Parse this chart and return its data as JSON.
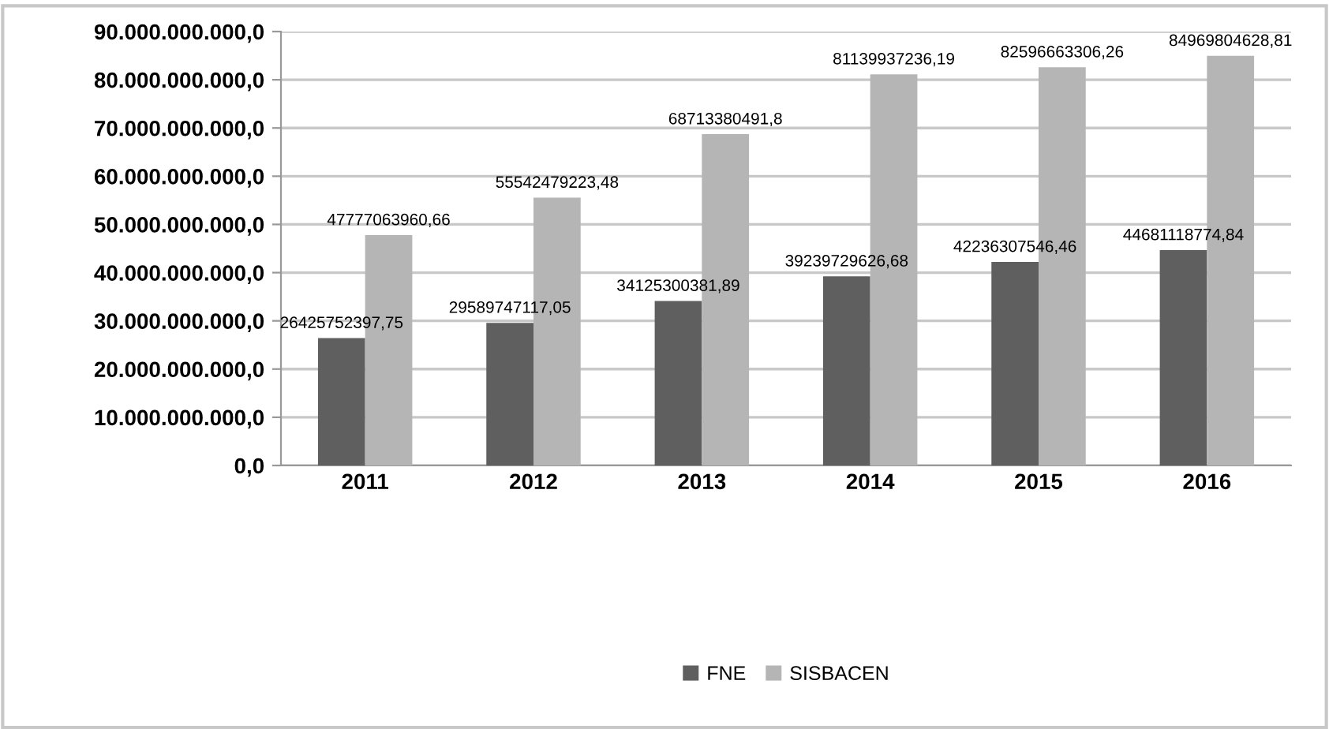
{
  "chart_data": {
    "type": "bar",
    "categories": [
      "2011",
      "2012",
      "2013",
      "2014",
      "2015",
      "2016"
    ],
    "series": [
      {
        "name": "FNE",
        "color": "#5f5f5f",
        "values": [
          26425752397.75,
          29589747117.05,
          34125300381.89,
          39239729626.68,
          42236307546.46,
          44681118774.84
        ],
        "value_labels": [
          "26425752397,75",
          "29589747117,05",
          "34125300381,89",
          "39239729626,68",
          "42236307546,46",
          "44681118774,84"
        ]
      },
      {
        "name": "SISBACEN",
        "color": "#b5b5b5",
        "values": [
          47777063960.66,
          55542479223.48,
          68713380491.8,
          81139937236.19,
          82596663306.26,
          84969804628.81
        ],
        "value_labels": [
          "47777063960,66",
          "55542479223,48",
          "68713380491,8",
          "81139937236,19",
          "82596663306,26",
          "84969804628,81"
        ]
      }
    ],
    "ylim": [
      0,
      90000000000
    ],
    "yticks": [
      {
        "value": 0,
        "label": "0,0"
      },
      {
        "value": 10000000000,
        "label": "10.000.000.000,0"
      },
      {
        "value": 20000000000,
        "label": "20.000.000.000,0"
      },
      {
        "value": 30000000000,
        "label": "30.000.000.000,0"
      },
      {
        "value": 40000000000,
        "label": "40.000.000.000,0"
      },
      {
        "value": 50000000000,
        "label": "50.000.000.000,0"
      },
      {
        "value": 60000000000,
        "label": "60.000.000.000,0"
      },
      {
        "value": 70000000000,
        "label": "70.000.000.000,0"
      },
      {
        "value": 80000000000,
        "label": "80.000.000.000,0"
      },
      {
        "value": 90000000000,
        "label": "90.000.000.000,0"
      }
    ],
    "grid": "y",
    "legend": "bottom"
  }
}
